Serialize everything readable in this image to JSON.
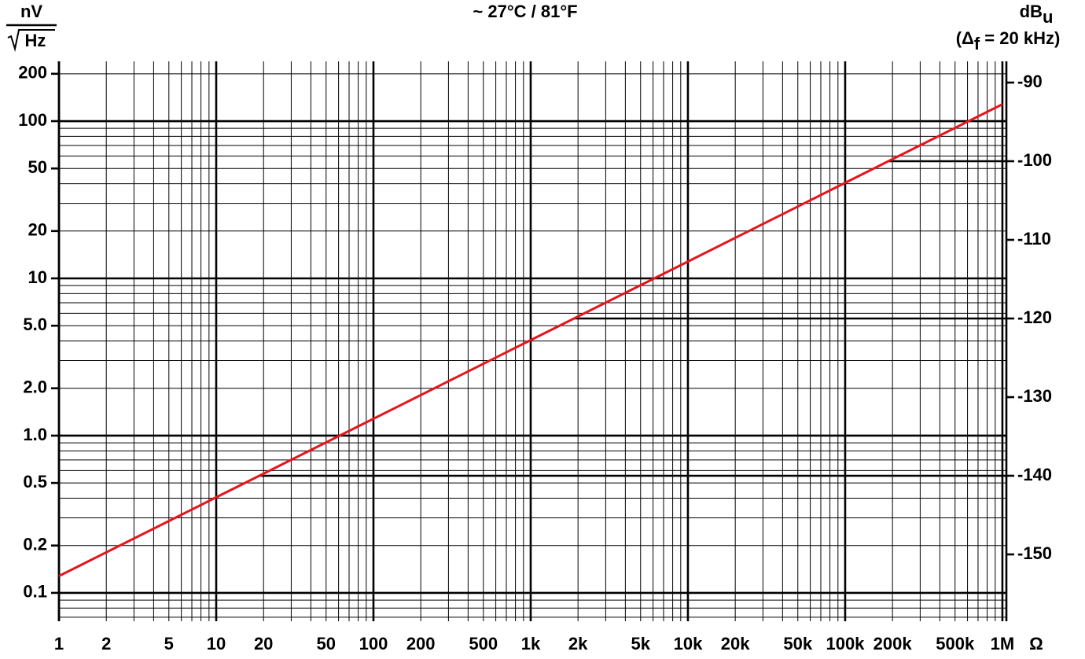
{
  "chart_data": {
    "type": "line",
    "title": "~ 27°C / 81°F",
    "y_label": {
      "numerator": "nV",
      "denominator": "Hz"
    },
    "y2_label": {
      "text": "dB",
      "sub": "u"
    },
    "y2_note": {
      "prefix": "(Δ",
      "sub": "f",
      "suffix": " = 20 kHz)"
    },
    "x_unit": "Ω",
    "x_log": true,
    "y_log": true,
    "grid": true,
    "minor_grid": true,
    "xlim": [
      1,
      1060000
    ],
    "ylim": [
      0.066,
      240
    ],
    "y2lim": [
      -158.5,
      -87.3
    ],
    "xticks": [
      1,
      2,
      5,
      10,
      20,
      50,
      100,
      200,
      500,
      {
        "value": 1000,
        "label": "1k"
      },
      {
        "value": 2000,
        "label": "2k"
      },
      {
        "value": 5000,
        "label": "5k"
      },
      {
        "value": 10000,
        "label": "10k"
      },
      {
        "value": 20000,
        "label": "20k"
      },
      {
        "value": 50000,
        "label": "50k"
      },
      {
        "value": 100000,
        "label": "100k"
      },
      {
        "value": 200000,
        "label": "200k"
      },
      {
        "value": 500000,
        "label": "500k"
      },
      {
        "value": 1000000,
        "label": "1M"
      }
    ],
    "yticks": [
      0.1,
      0.2,
      0.5,
      {
        "value": 1,
        "label": "1.0"
      },
      {
        "value": 2,
        "label": "2.0"
      },
      {
        "value": 5,
        "label": "5.0"
      },
      10,
      20,
      50,
      100,
      200
    ],
    "y2ticks": [
      -90,
      -100,
      -110,
      -120,
      -130,
      -140,
      -150
    ],
    "y2_guides": [
      -100,
      -120,
      -140
    ],
    "x": [
      1,
      10,
      100,
      1000,
      10000,
      100000,
      1000000
    ],
    "series": [
      {
        "color": "#e8141b",
        "values": [
          0.128,
          0.405,
          1.28,
          4.05,
          12.8,
          40.5,
          128
        ]
      }
    ]
  }
}
